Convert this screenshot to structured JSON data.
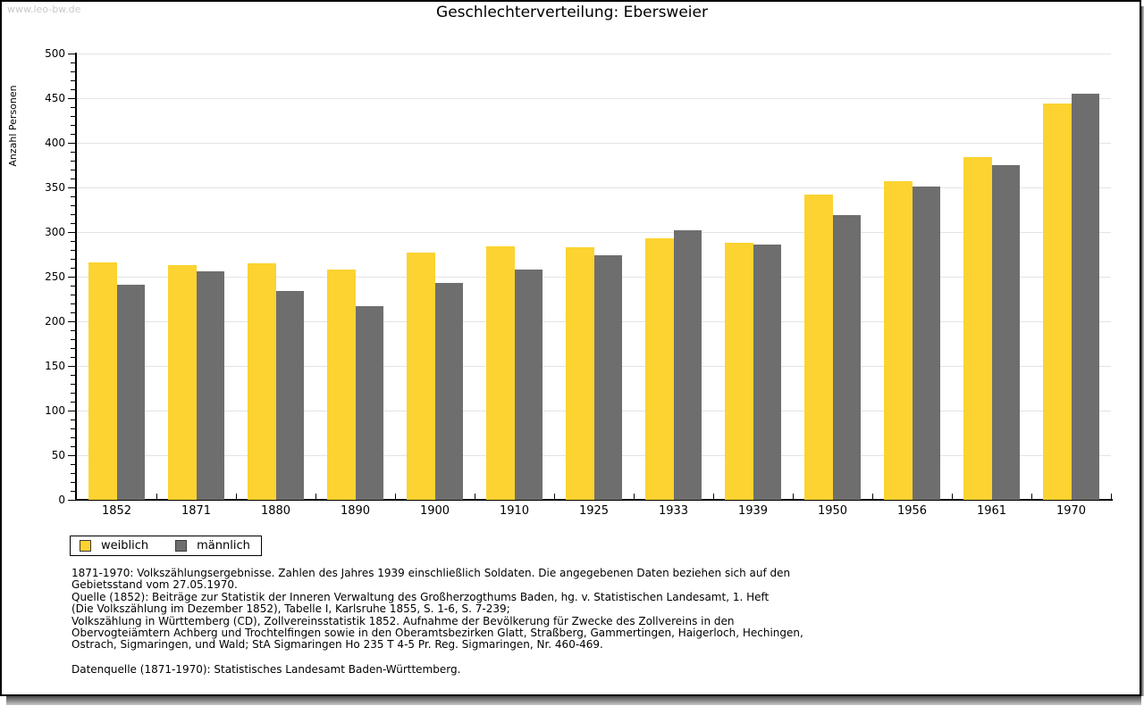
{
  "watermark": "www.leo-bw.de",
  "title": "Geschlechterverteilung: Ebersweier",
  "chart_data": {
    "type": "bar",
    "title": "Geschlechterverteilung: Ebersweier",
    "xlabel": "",
    "ylabel": "Anzahl Personen",
    "ylim": [
      0,
      500
    ],
    "ytick_major": 50,
    "ytick_minor": 10,
    "grid": true,
    "legend_position": "bottom-left",
    "categories": [
      "1852",
      "1871",
      "1880",
      "1890",
      "1900",
      "1910",
      "1925",
      "1933",
      "1939",
      "1950",
      "1956",
      "1961",
      "1970"
    ],
    "series": [
      {
        "name": "weiblich",
        "color": "#FCD330",
        "values": [
          266,
          263,
          265,
          258,
          277,
          284,
          283,
          293,
          288,
          342,
          357,
          384,
          444
        ]
      },
      {
        "name": "männlich",
        "color": "#6E6E6E",
        "values": [
          241,
          256,
          234,
          217,
          243,
          258,
          274,
          302,
          286,
          319,
          351,
          375,
          455
        ]
      }
    ]
  },
  "footnotes": {
    "lines": [
      "1871-1970: Volkszählungsergebnisse. Zahlen des Jahres 1939 einschließlich Soldaten. Die angegebenen Daten beziehen sich auf den",
      "Gebietsstand vom 27.05.1970.",
      "Quelle (1852): Beiträge zur Statistik der Inneren Verwaltung des Großherzogthums Baden, hg. v. Statistischen Landesamt, 1. Heft",
      "(Die Volkszählung im Dezember 1852), Tabelle I, Karlsruhe 1855, S. 1-6, S. 7-239;",
      "Volkszählung in Württemberg (CD), Zollvereinsstatistik 1852. Aufnahme der Bevölkerung für Zwecke des Zollvereins in den",
      "Obervogteiämtern Achberg und Trochtelfingen sowie in den Oberamtsbezirken Glatt, Straßberg, Gammertingen, Haigerloch, Hechingen,",
      "Ostrach, Sigmaringen, und Wald; StA Sigmaringen Ho 235 T 4-5 Pr. Reg. Sigmaringen, Nr. 460-469."
    ],
    "datasource": "Datenquelle (1871-1970): Statistisches Landesamt Baden-Württemberg."
  }
}
